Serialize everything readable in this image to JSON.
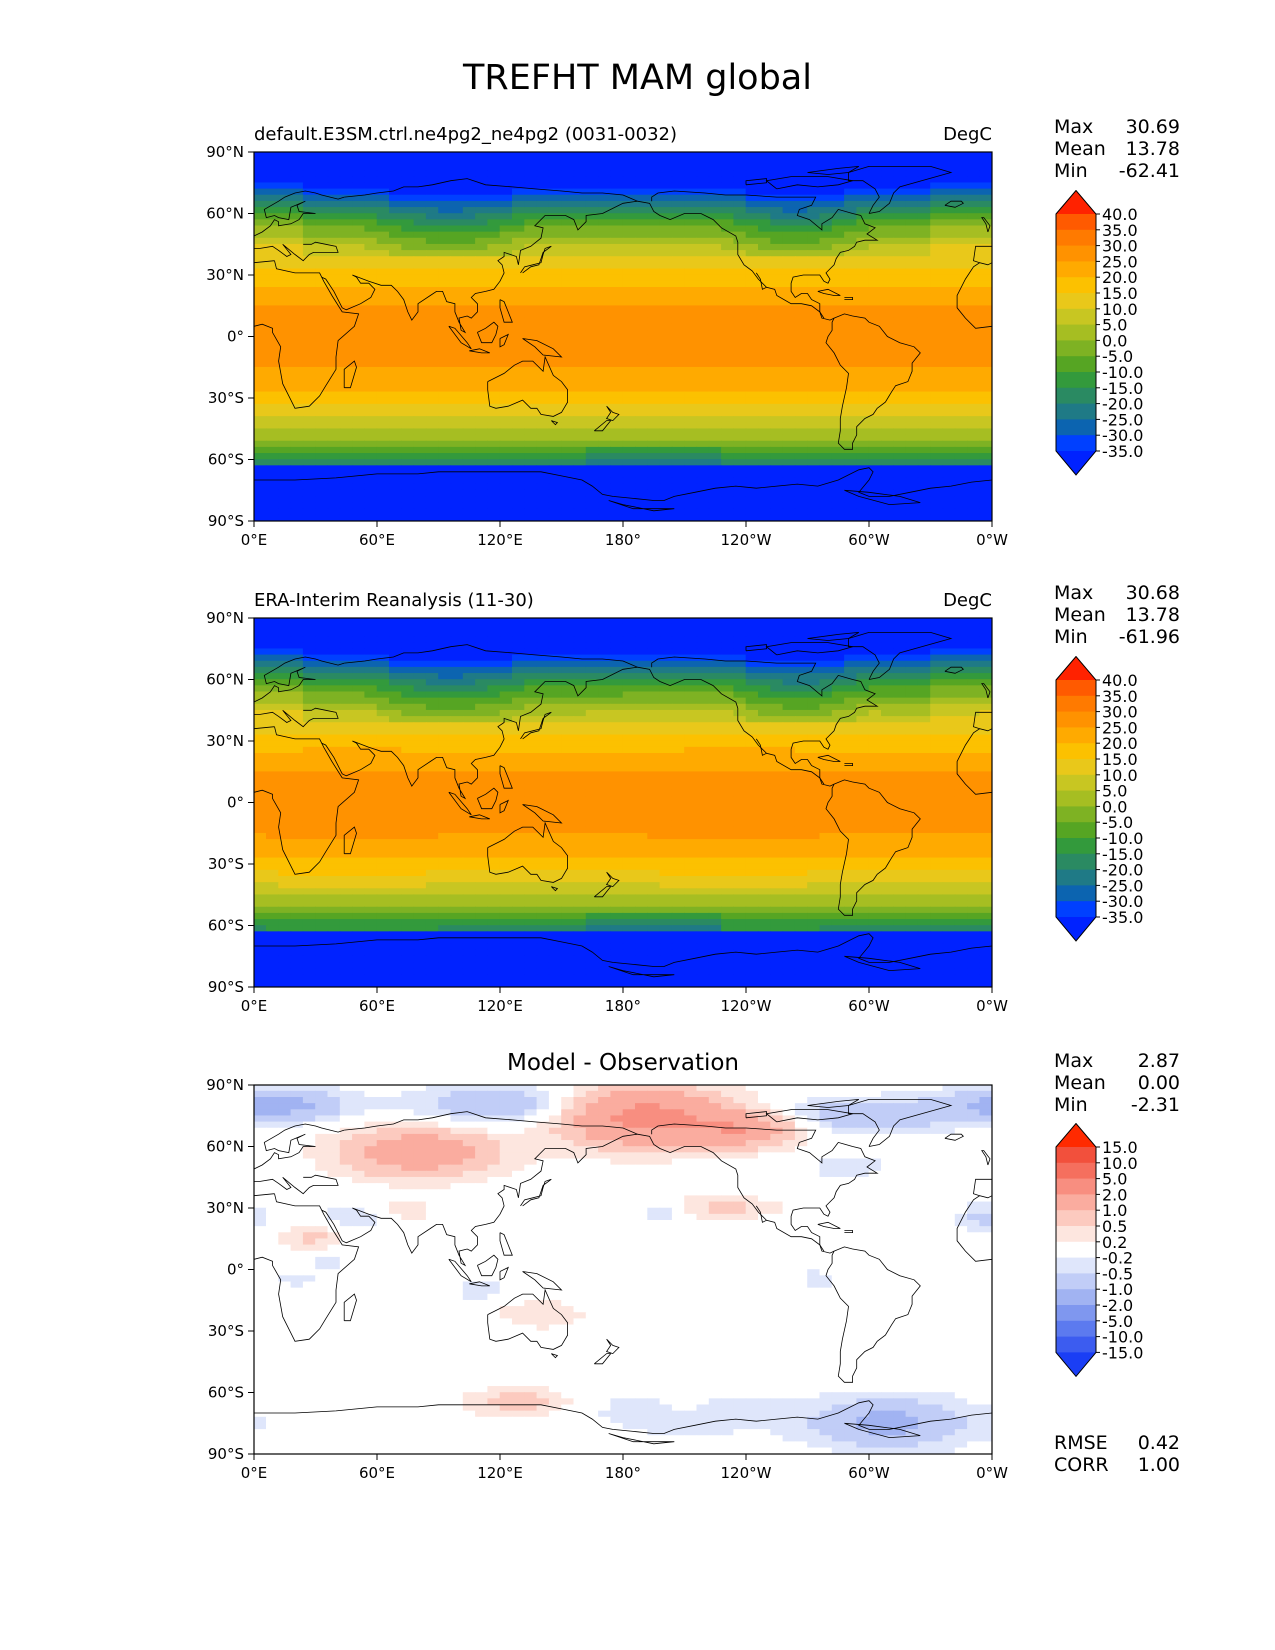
{
  "title": "TREFHT MAM global",
  "axes": {
    "lat_ticks": [
      "90°N",
      "60°N",
      "30°N",
      "0°",
      "30°S",
      "60°S",
      "90°S"
    ],
    "lon_ticks": [
      "0°E",
      "60°E",
      "120°E",
      "180°",
      "120°W",
      "60°W",
      "0°W"
    ]
  },
  "panels": [
    {
      "id": "model",
      "title_left": "default.E3SM.ctrl.ne4pg2_ne4pg2 (0031-0032)",
      "title_right": "DegC",
      "stats": {
        "max_label": "Max",
        "max": "30.69",
        "mean_label": "Mean",
        "mean": "13.78",
        "min_label": "Min",
        "min": "-62.41"
      },
      "colorbar_labels": [
        "40.0",
        "35.0",
        "30.0",
        "25.0",
        "20.0",
        "15.0",
        "10.0",
        "5.0",
        "0.0",
        "-5.0",
        "-10.0",
        "-15.0",
        "-20.0",
        "-25.0",
        "-30.0",
        "-35.0"
      ],
      "colorbar_colors": [
        "#ff2200",
        "#ff5a00",
        "#ff7a00",
        "#ff9200",
        "#ffaa00",
        "#fcc100",
        "#e9c81a",
        "#c8c622",
        "#a6be22",
        "#7eb223",
        "#56a523",
        "#339a3c",
        "#2a8a62",
        "#1f7a86",
        "#0c64b0",
        "#0040ff",
        "#0022ff"
      ]
    },
    {
      "id": "obs",
      "title_left": "ERA-Interim Reanalysis (11-30)",
      "title_right": "DegC",
      "stats": {
        "max_label": "Max",
        "max": "30.68",
        "mean_label": "Mean",
        "mean": "13.78",
        "min_label": "Min",
        "min": "-61.96"
      },
      "colorbar_labels": [
        "40.0",
        "35.0",
        "30.0",
        "25.0",
        "20.0",
        "15.0",
        "10.0",
        "5.0",
        "0.0",
        "-5.0",
        "-10.0",
        "-15.0",
        "-20.0",
        "-25.0",
        "-30.0",
        "-35.0"
      ],
      "colorbar_colors": [
        "#ff2200",
        "#ff5a00",
        "#ff7a00",
        "#ff9200",
        "#ffaa00",
        "#fcc100",
        "#e9c81a",
        "#c8c622",
        "#a6be22",
        "#7eb223",
        "#56a523",
        "#339a3c",
        "#2a8a62",
        "#1f7a86",
        "#0c64b0",
        "#0040ff",
        "#0022ff"
      ]
    },
    {
      "id": "diff",
      "title_center": "Model - Observation",
      "stats": {
        "max_label": "Max",
        "max": "2.87",
        "mean_label": "Mean",
        "mean": "0.00",
        "min_label": "Min",
        "min": "-2.31"
      },
      "colorbar_labels": [
        "15.0",
        "10.0",
        "5.0",
        "2.0",
        "1.0",
        "0.5",
        "0.2",
        "-0.2",
        "-0.5",
        "-1.0",
        "-2.0",
        "-5.0",
        "-10.0",
        "-15.0"
      ],
      "colorbar_colors": [
        "#ff2a00",
        "#f2503c",
        "#f56f5e",
        "#f88e80",
        "#faac9f",
        "#fccabf",
        "#fde6df",
        "#ffffff",
        "#dfe6fb",
        "#c1cdf7",
        "#a1b3f2",
        "#7f97ef",
        "#5c7aef",
        "#3c5cf0",
        "#1a3ef5"
      ],
      "metrics": {
        "rmse_label": "RMSE",
        "rmse": "0.42",
        "corr_label": "CORR",
        "corr": "1.00"
      }
    }
  ]
}
